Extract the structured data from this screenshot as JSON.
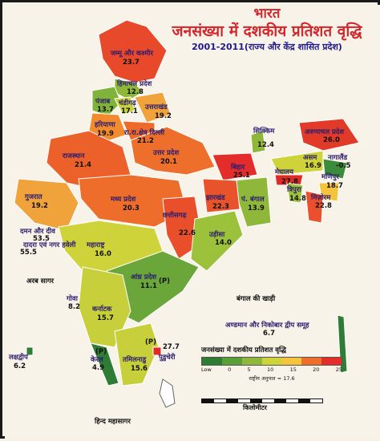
{
  "title": {
    "line1": "भारत",
    "line2": "जनसंख्या में दशकीय प्रतिशत वृद्धि",
    "line3": "2001-2011(राज्य और केंद्र शासित प्रदेश)"
  },
  "regions": [
    {
      "name": "जम्मू और कश्मीर",
      "value": "23.7",
      "color": "#e8492b"
    },
    {
      "name": "हिमाचल प्रदेश",
      "value": "12.8",
      "color": "#8fb83a"
    },
    {
      "name": "पंजाब",
      "value": "13.7",
      "color": "#7fb33a"
    },
    {
      "name": "चंडीगढ़",
      "value": "17.1",
      "color": "#c9d23a"
    },
    {
      "name": "उत्तराखंड",
      "value": "19.2",
      "color": "#f0a23b"
    },
    {
      "name": "हरियाणा",
      "value": "19.9",
      "color": "#f28a2e"
    },
    {
      "name": "रा.रा.क्षेत्र दिल्ली",
      "value": "21.2",
      "color": "#ee6a2b"
    },
    {
      "name": "राजस्थान",
      "value": "21.4",
      "color": "#ec612a"
    },
    {
      "name": "उत्तर प्रदेश",
      "value": "20.1",
      "color": "#ee6f2b"
    },
    {
      "name": "बिहार",
      "value": "25.1",
      "color": "#e42d2a"
    },
    {
      "name": "सिक्किम",
      "value": "12.4",
      "color": "#8fb83a"
    },
    {
      "name": "अरुणाचल प्रदेश",
      "value": "26.0",
      "color": "#e13a28"
    },
    {
      "name": "असम",
      "value": "16.9",
      "color": "#cfd33a"
    },
    {
      "name": "नागालैंड",
      "value": "-0.5",
      "color": "#3b8b3a"
    },
    {
      "name": "मेघालय",
      "value": "27.8",
      "color": "#df2a26"
    },
    {
      "name": "मणिपुर",
      "value": "18.7",
      "color": "#f5c43c"
    },
    {
      "name": "त्रिपुरा",
      "value": "14.8",
      "color": "#9cc13a"
    },
    {
      "name": "मिज़ोरम",
      "value": "22.8",
      "color": "#e9502b"
    },
    {
      "name": "पं. बंगाल",
      "value": "13.9",
      "color": "#8fb83a"
    },
    {
      "name": "झारखंड",
      "value": "22.3",
      "color": "#e9532b"
    },
    {
      "name": "गुजरात",
      "value": "19.2",
      "color": "#f0a23b"
    },
    {
      "name": "मध्य प्रदेश",
      "value": "20.3",
      "color": "#ee6d2b"
    },
    {
      "name": "छत्तीसगढ़",
      "value": "22.6",
      "color": "#ea4f2b"
    },
    {
      "name": "उड़ीसा",
      "value": "14.0",
      "color": "#9cc13a"
    },
    {
      "name": "दमन और दीव",
      "value": "53.5",
      "color": "#d8261f"
    },
    {
      "name": "दादरा एवं नगर हवेली",
      "value": "55.5",
      "color": "#d8261f"
    },
    {
      "name": "महाराष्ट्र",
      "value": "16.0",
      "color": "#cfd33a"
    },
    {
      "name": "आंध्र प्रदेश",
      "value": "11.1",
      "color": "#6aa63a"
    },
    {
      "name": "गोवा",
      "value": "8.2",
      "color": "#3b8b3a"
    },
    {
      "name": "कर्नाटक",
      "value": "15.7",
      "color": "#c7cf3a"
    },
    {
      "name": "केरल",
      "value": "4.9",
      "color": "#2f7d35"
    },
    {
      "name": "तमिलनाडु",
      "value": "15.6",
      "color": "#c7cf3a"
    },
    {
      "name": "पुडुचेरी",
      "value": "27.7",
      "color": "#df2a26"
    },
    {
      "name": "लक्षद्वीप",
      "value": "6.2",
      "color": "#2f7d35"
    },
    {
      "name": "अण्डमान और निकोबार द्वीप समूह",
      "value": "6.7",
      "color": "#2f7d35"
    }
  ],
  "seas": {
    "arabian": "अरब सागर",
    "bay": "बंगाल की खाड़ी",
    "indian_ocean": "हिन्द महासागर"
  },
  "legend": {
    "title": "जनसंख्या में दशकीय प्रतिशत वृद्धि",
    "ticks": [
      "Low",
      "0",
      "5",
      "10",
      "15",
      "20",
      "25"
    ],
    "average": "राष्ट्रीय अनुपात = 17.6",
    "colors": [
      "#2f7d35",
      "#5a9e38",
      "#8fb83a",
      "#cfd33a",
      "#f5c43c",
      "#ee6f2b",
      "#e42d2a"
    ]
  },
  "scale_label": "किलोमीटर",
  "markers": [
    "(P)",
    "(P)",
    "(P)"
  ]
}
